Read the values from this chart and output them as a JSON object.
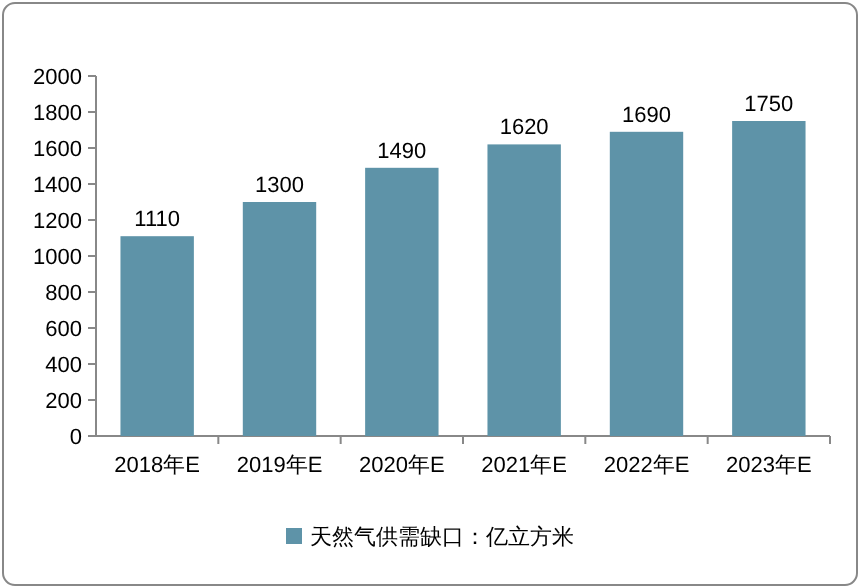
{
  "chart_data": {
    "type": "bar",
    "categories": [
      "2018年E",
      "2019年E",
      "2020年E",
      "2021年E",
      "2022年E",
      "2023年E"
    ],
    "series": [
      {
        "name": "天然气供需缺口：亿立方米",
        "color": "#5e93a8",
        "values": [
          1110,
          1300,
          1490,
          1620,
          1690,
          1750
        ]
      }
    ],
    "ylim": [
      0,
      2000
    ],
    "yticks": [
      0,
      200,
      400,
      600,
      800,
      1000,
      1200,
      1400,
      1600,
      1800,
      2000
    ],
    "data_labels": true,
    "legend": "bottom",
    "grid": false
  }
}
